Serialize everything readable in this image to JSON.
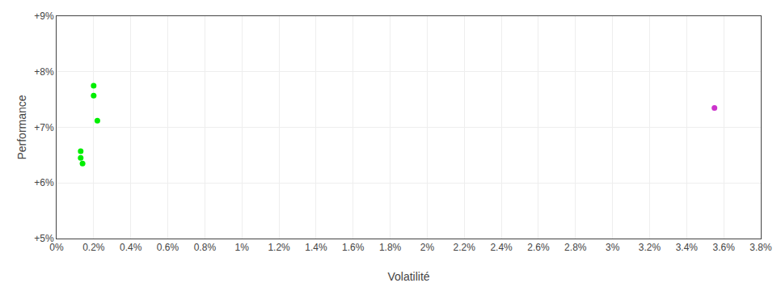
{
  "chart_data": {
    "type": "scatter",
    "x_label": "Volatilité",
    "y_label": "Performance",
    "series": [
      {
        "color": "#00ee00",
        "x": [
          0.002,
          0.002,
          0.0022,
          0.0013,
          0.0013,
          0.0014
        ],
        "values": [
          0.0775,
          0.0757,
          0.0712,
          0.0657,
          0.0645,
          0.0635
        ]
      },
      {
        "color": "#cc33cc",
        "x": [
          0.0355
        ],
        "values": [
          0.0735
        ]
      }
    ],
    "xlim": [
      0.0,
      0.038
    ],
    "ylim": [
      0.05,
      0.09
    ],
    "xticks": [
      {
        "value": 0.0,
        "label": "0%"
      },
      {
        "value": 0.002,
        "label": "0.2%"
      },
      {
        "value": 0.004,
        "label": "0.4%"
      },
      {
        "value": 0.006,
        "label": "0.6%"
      },
      {
        "value": 0.008,
        "label": "0.8%"
      },
      {
        "value": 0.01,
        "label": "1%"
      },
      {
        "value": 0.012,
        "label": "1.2%"
      },
      {
        "value": 0.014,
        "label": "1.4%"
      },
      {
        "value": 0.016,
        "label": "1.6%"
      },
      {
        "value": 0.018,
        "label": "1.8%"
      },
      {
        "value": 0.02,
        "label": "2%"
      },
      {
        "value": 0.022,
        "label": "2.2%"
      },
      {
        "value": 0.024,
        "label": "2.4%"
      },
      {
        "value": 0.026,
        "label": "2.6%"
      },
      {
        "value": 0.028,
        "label": "2.8%"
      },
      {
        "value": 0.03,
        "label": "3%"
      },
      {
        "value": 0.032,
        "label": "3.2%"
      },
      {
        "value": 0.034,
        "label": "3.4%"
      },
      {
        "value": 0.036,
        "label": "3.6%"
      },
      {
        "value": 0.038,
        "label": "3.8%"
      }
    ],
    "yticks": [
      {
        "value": 0.05,
        "label": "+5%"
      },
      {
        "value": 0.06,
        "label": "+6%"
      },
      {
        "value": 0.07,
        "label": "+7%"
      },
      {
        "value": 0.08,
        "label": "+8%"
      },
      {
        "value": 0.09,
        "label": "+9%"
      }
    ],
    "grid": true
  }
}
